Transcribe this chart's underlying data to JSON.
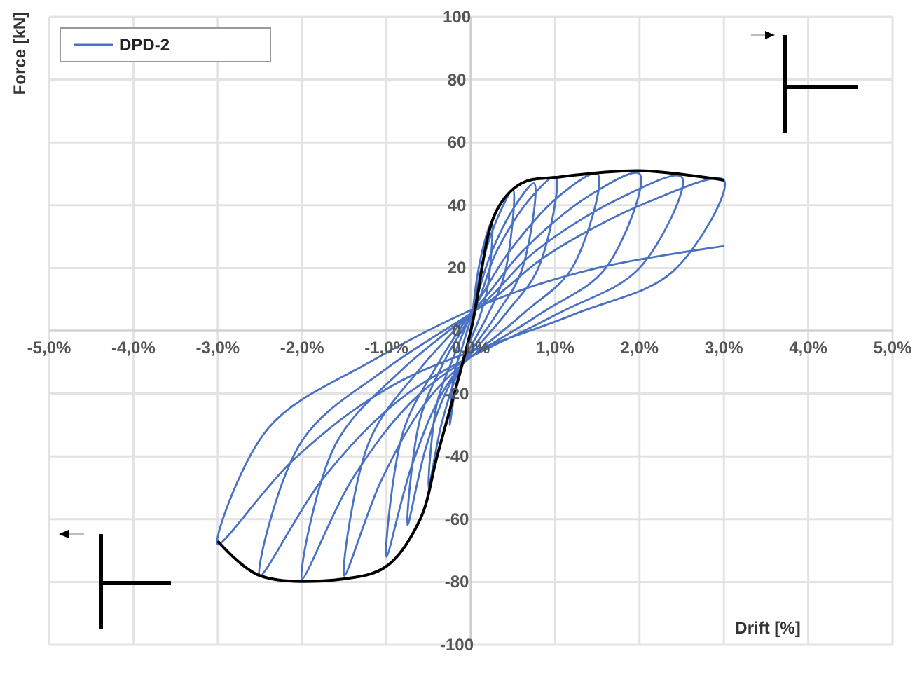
{
  "chart_data": {
    "type": "line",
    "xlabel": "Drift [%]",
    "ylabel": "Force [kN]",
    "xlim": [
      -5,
      5
    ],
    "ylim": [
      -100,
      100
    ],
    "xticks": [
      {
        "value": -5,
        "label": "-5,0%"
      },
      {
        "value": -4,
        "label": "-4,0%"
      },
      {
        "value": -3,
        "label": "-3,0%"
      },
      {
        "value": -2,
        "label": "-2,0%"
      },
      {
        "value": -1,
        "label": "-1,0%"
      },
      {
        "value": 0,
        "label": "0,0%"
      },
      {
        "value": 1,
        "label": "1,0%"
      },
      {
        "value": 2,
        "label": "2,0%"
      },
      {
        "value": 3,
        "label": "3,0%"
      },
      {
        "value": 4,
        "label": "4,0%"
      },
      {
        "value": 5,
        "label": "5,0%"
      }
    ],
    "yticks": [
      -100,
      -80,
      -60,
      -40,
      -20,
      0,
      20,
      40,
      60,
      80,
      100
    ],
    "grid": true,
    "legend": "top left",
    "marker": "none",
    "line_style": "solid",
    "series": [
      {
        "name": "DPD-2",
        "color": "#4a72c4",
        "x": [
          0,
          0.08,
          0.18,
          0.25,
          0.2,
          0.1,
          -0.08,
          -0.18,
          -0.25,
          -0.2,
          -0.1,
          0.03,
          0.15,
          0.35,
          0.5,
          0.4,
          0.2,
          -0.15,
          -0.35,
          -0.5,
          -0.4,
          -0.2,
          0.05,
          0.23,
          0.53,
          0.75,
          0.6,
          0.3,
          -0.23,
          -0.53,
          -0.75,
          -0.6,
          -0.3,
          0.08,
          0.3,
          0.7,
          1,
          0.8,
          0.4,
          -0.3,
          -0.7,
          -1,
          -0.8,
          -0.4,
          0.1,
          0.45,
          1.05,
          1.5,
          1.2,
          0.6,
          -0.45,
          -1.05,
          -1.5,
          -1.2,
          -0.6,
          0.15,
          0.6,
          1.4,
          2,
          1.6,
          0.8,
          -0.6,
          -1.4,
          -2,
          -1.6,
          -0.8,
          0.2,
          0.75,
          1.75,
          2.5,
          2,
          1,
          -0.75,
          -1.75,
          -2.5,
          -2,
          -1,
          0.25,
          0.9,
          2.1,
          3,
          2.4,
          1.2,
          -0.9,
          -2.1,
          -3,
          -2.4,
          -1.2,
          0.3,
          1.5,
          3
        ],
        "values": [
          0,
          18,
          30,
          35,
          14,
          4,
          -8,
          -18,
          -30,
          -14,
          -5,
          7,
          23,
          38,
          45,
          18,
          5,
          -13,
          -30,
          -50,
          -23,
          -8,
          9,
          24,
          40,
          47,
          19,
          5,
          -16,
          -37,
          -62,
          -28,
          -9,
          9,
          25,
          42,
          49,
          20,
          5,
          -18,
          -43,
          -72,
          -32,
          -11,
          10,
          25,
          43,
          50,
          20,
          5,
          -20,
          -47,
          -78,
          -35,
          -12,
          10,
          25,
          43,
          50,
          20,
          5,
          -20,
          -47,
          -79,
          -36,
          -12,
          10,
          25,
          42,
          49,
          20,
          5,
          -20,
          -47,
          -78,
          -35,
          -12,
          10,
          24,
          41,
          48,
          19,
          5,
          -17,
          -41,
          -68,
          -31,
          -10,
          10,
          20,
          27
        ]
      },
      {
        "color": "#000000",
        "x": [
          -3,
          -2.5,
          -1.5,
          -1,
          -0.6,
          -0.4,
          0,
          0.3,
          0.6,
          1.05,
          2,
          3
        ],
        "values": [
          -67,
          -78,
          -79,
          -75,
          -60,
          -40,
          0,
          38,
          47,
          49,
          51,
          48
        ]
      }
    ]
  }
}
